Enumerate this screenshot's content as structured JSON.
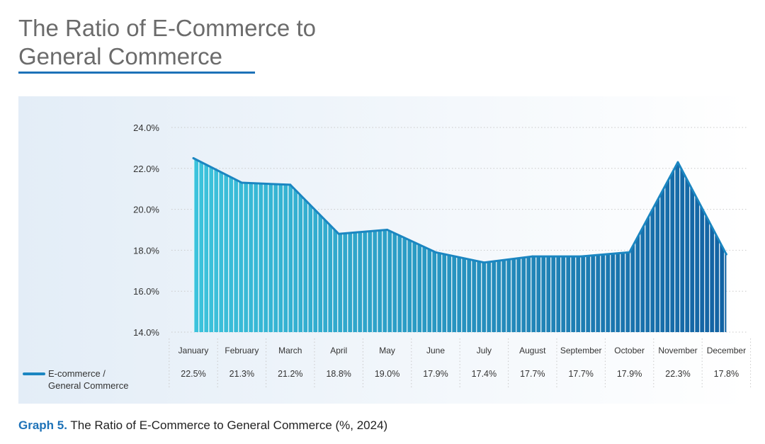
{
  "header": {
    "title": "The Ratio of E-Commerce to\nGeneral Commerce"
  },
  "caption": {
    "label": "Graph 5.",
    "text": " The Ratio of E-Commerce to General Commerce (%, 2024)"
  },
  "colors": {
    "accent": "#1d72b8",
    "fill_start": "#3cc3dc",
    "fill_end": "#1262a3",
    "line": "#1b86c1"
  },
  "chart_data": {
    "type": "area",
    "categories": [
      "January",
      "February",
      "March",
      "April",
      "May",
      "June",
      "July",
      "August",
      "September",
      "October",
      "November",
      "December"
    ],
    "series": [
      {
        "name": "E-commerce / General Commerce",
        "values": [
          22.5,
          21.3,
          21.2,
          18.8,
          19.0,
          17.9,
          17.4,
          17.7,
          17.7,
          17.9,
          22.3,
          17.8
        ],
        "value_labels": [
          "22.5%",
          "21.3%",
          "21.2%",
          "18.8%",
          "19.0%",
          "17.9%",
          "17.4%",
          "17.7%",
          "17.7%",
          "17.9%",
          "22.3%",
          "17.8%"
        ]
      }
    ],
    "legend_lines": [
      "E-commerce /",
      "General Commerce"
    ],
    "yticks": [
      14,
      16,
      18,
      20,
      22,
      24
    ],
    "ytick_labels": [
      "14.0%",
      "16.0%",
      "18.0%",
      "20.0%",
      "22.0%",
      "24.0%"
    ],
    "ylim": [
      14,
      24
    ],
    "grid": true,
    "legend_position": "bottom-left"
  }
}
